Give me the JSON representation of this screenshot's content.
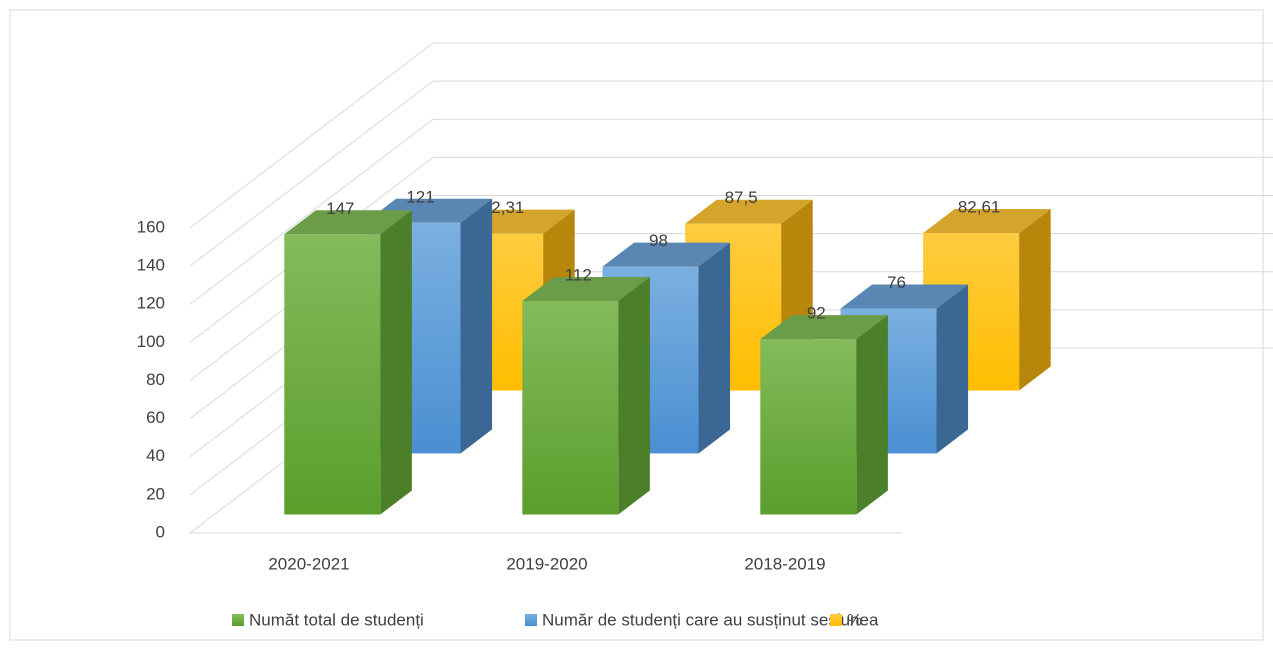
{
  "chart_data": {
    "type": "bar3d",
    "categories": [
      "2020-2021",
      "2019-2020",
      "2018-2019"
    ],
    "series": [
      {
        "name": "Număt total de studenți",
        "color": "#70ad47",
        "values": [
          147,
          112,
          92
        ]
      },
      {
        "name": "Număr de studenți care au susținut sesiunea",
        "color": "#5b9bd5",
        "values": [
          121,
          98,
          76
        ]
      },
      {
        "name": "%",
        "color": "#ffc000",
        "values": [
          82.31,
          87.5,
          82.61
        ],
        "value_labels": [
          "82,31",
          "87,5",
          "82,61"
        ]
      }
    ],
    "ylim": [
      0,
      160
    ],
    "yticks": [
      0,
      20,
      40,
      60,
      80,
      100,
      120,
      140,
      160
    ],
    "grid": true,
    "legend": "bottom"
  }
}
